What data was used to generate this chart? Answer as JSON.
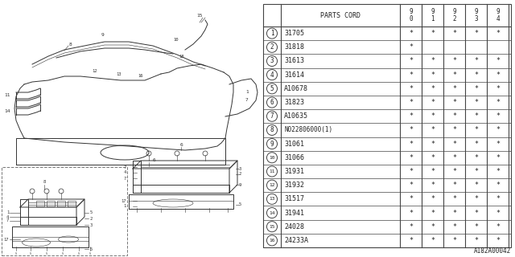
{
  "bg_color": "#ffffff",
  "diagram_label": "A182A00042",
  "rows": [
    {
      "num": "1",
      "code": "31705",
      "cols": [
        "*",
        "*",
        "*",
        "*",
        "*"
      ]
    },
    {
      "num": "2",
      "code": "31818",
      "cols": [
        "*",
        "",
        "",
        "",
        ""
      ]
    },
    {
      "num": "3",
      "code": "31613",
      "cols": [
        "*",
        "*",
        "*",
        "*",
        "*"
      ]
    },
    {
      "num": "4",
      "code": "31614",
      "cols": [
        "*",
        "*",
        "*",
        "*",
        "*"
      ]
    },
    {
      "num": "5",
      "code": "A10678",
      "cols": [
        "*",
        "*",
        "*",
        "*",
        "*"
      ]
    },
    {
      "num": "6",
      "code": "31823",
      "cols": [
        "*",
        "*",
        "*",
        "*",
        "*"
      ]
    },
    {
      "num": "7",
      "code": "A10635",
      "cols": [
        "*",
        "*",
        "*",
        "*",
        "*"
      ]
    },
    {
      "num": "8",
      "code": "N022806000(1)",
      "cols": [
        "*",
        "*",
        "*",
        "*",
        "*"
      ]
    },
    {
      "num": "9",
      "code": "31061",
      "cols": [
        "*",
        "*",
        "*",
        "*",
        "*"
      ]
    },
    {
      "num": "10",
      "code": "31066",
      "cols": [
        "*",
        "*",
        "*",
        "*",
        "*"
      ]
    },
    {
      "num": "11",
      "code": "31931",
      "cols": [
        "*",
        "*",
        "*",
        "*",
        "*"
      ]
    },
    {
      "num": "12",
      "code": "31932",
      "cols": [
        "*",
        "*",
        "*",
        "*",
        "*"
      ]
    },
    {
      "num": "13",
      "code": "31517",
      "cols": [
        "*",
        "*",
        "*",
        "*",
        "*"
      ]
    },
    {
      "num": "14",
      "code": "31941",
      "cols": [
        "*",
        "*",
        "*",
        "*",
        "*"
      ]
    },
    {
      "num": "15",
      "code": "24028",
      "cols": [
        "*",
        "*",
        "*",
        "*",
        "*"
      ]
    },
    {
      "num": "16",
      "code": "24233A",
      "cols": [
        "*",
        "*",
        "*",
        "*",
        "*"
      ]
    }
  ],
  "line_color": "#444444",
  "text_color": "#222222",
  "font_size": 6.0
}
